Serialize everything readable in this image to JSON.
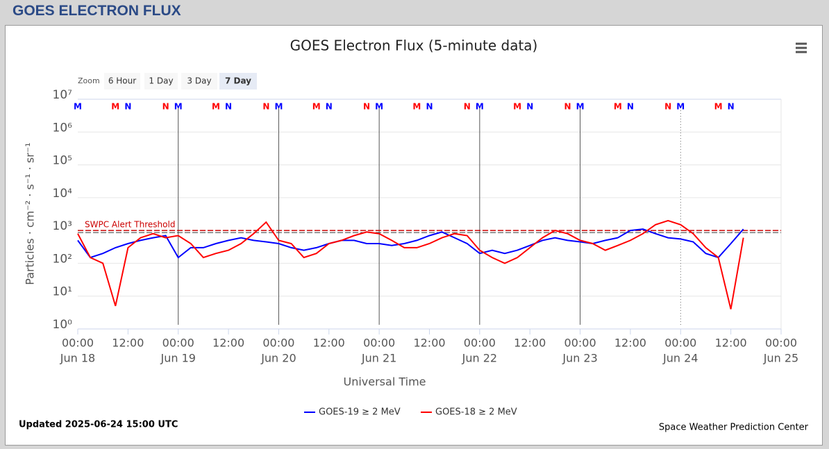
{
  "page_title": "GOES ELECTRON FLUX",
  "zoom": {
    "label": "Zoom",
    "buttons": [
      "6 Hour",
      "1 Day",
      "3 Day",
      "7 Day"
    ],
    "selected": 3
  },
  "updated": "Updated 2025-06-24 15:00 UTC",
  "credit": "Space Weather Prediction Center",
  "chart_data": {
    "type": "line",
    "title": "GOES Electron Flux (5-minute data)",
    "x_label": "Universal Time",
    "y_label": "Particles · cm⁻² · s⁻¹ · sr⁻¹",
    "y_scale": "log",
    "grid": true,
    "xlim": [
      "Jun 18 00:00",
      "Jun 25 00:00"
    ],
    "xticks": [
      {
        "value": "Jun 18 00:00",
        "label": [
          "00:00",
          "Jun 18"
        ]
      },
      {
        "value": "Jun 18 12:00",
        "label": "12:00"
      },
      {
        "value": "Jun 19 00:00",
        "label": [
          "00:00",
          "Jun 19"
        ]
      },
      {
        "value": "Jun 19 12:00",
        "label": "12:00"
      },
      {
        "value": "Jun 20 00:00",
        "label": [
          "00:00",
          "Jun 20"
        ]
      },
      {
        "value": "Jun 20 12:00",
        "label": "12:00"
      },
      {
        "value": "Jun 21 00:00",
        "label": [
          "00:00",
          "Jun 21"
        ]
      },
      {
        "value": "Jun 21 12:00",
        "label": "12:00"
      },
      {
        "value": "Jun 22 00:00",
        "label": [
          "00:00",
          "Jun 22"
        ]
      },
      {
        "value": "Jun 22 12:00",
        "label": "12:00"
      },
      {
        "value": "Jun 23 00:00",
        "label": [
          "00:00",
          "Jun 23"
        ]
      },
      {
        "value": "Jun 23 12:00",
        "label": "12:00"
      },
      {
        "value": "Jun 24 00:00",
        "label": [
          "00:00",
          "Jun 24"
        ]
      },
      {
        "value": "Jun 24 12:00",
        "label": "12:00"
      },
      {
        "value": "Jun 25 00:00",
        "label": [
          "00:00",
          "Jun 25"
        ]
      }
    ],
    "ylim": [
      1,
      10000000
    ],
    "yticks": [
      {
        "value": 1,
        "label": "10⁰"
      },
      {
        "value": 10,
        "label": "10¹"
      },
      {
        "value": 100,
        "label": "10²"
      },
      {
        "value": 1000,
        "label": "10³"
      },
      {
        "value": 10000,
        "label": "10⁴"
      },
      {
        "value": 100000,
        "label": "10⁵"
      },
      {
        "value": 1000000,
        "label": "10⁶"
      },
      {
        "value": 10000000,
        "label": "10⁷"
      }
    ],
    "x": [
      "Jun 18 00:00",
      "Jun 18 03:00",
      "Jun 18 06:00",
      "Jun 18 09:00",
      "Jun 18 12:00",
      "Jun 18 15:00",
      "Jun 18 18:00",
      "Jun 18 21:00",
      "Jun 19 00:00",
      "Jun 19 03:00",
      "Jun 19 06:00",
      "Jun 19 09:00",
      "Jun 19 12:00",
      "Jun 19 15:00",
      "Jun 19 18:00",
      "Jun 19 21:00",
      "Jun 20 00:00",
      "Jun 20 03:00",
      "Jun 20 06:00",
      "Jun 20 09:00",
      "Jun 20 12:00",
      "Jun 20 15:00",
      "Jun 20 18:00",
      "Jun 20 21:00",
      "Jun 21 00:00",
      "Jun 21 03:00",
      "Jun 21 06:00",
      "Jun 21 09:00",
      "Jun 21 12:00",
      "Jun 21 15:00",
      "Jun 21 18:00",
      "Jun 21 21:00",
      "Jun 22 00:00",
      "Jun 22 03:00",
      "Jun 22 06:00",
      "Jun 22 09:00",
      "Jun 22 12:00",
      "Jun 22 15:00",
      "Jun 22 18:00",
      "Jun 22 21:00",
      "Jun 23 00:00",
      "Jun 23 03:00",
      "Jun 23 06:00",
      "Jun 23 09:00",
      "Jun 23 12:00",
      "Jun 23 15:00",
      "Jun 23 18:00",
      "Jun 23 21:00",
      "Jun 24 00:00",
      "Jun 24 03:00",
      "Jun 24 06:00",
      "Jun 24 09:00",
      "Jun 24 12:00",
      "Jun 24 15:00"
    ],
    "series": [
      {
        "name": "GOES-19 ≥ 2 MeV",
        "color": "#0000ff",
        "values": [
          500,
          150,
          200,
          300,
          400,
          500,
          600,
          700,
          150,
          300,
          300,
          400,
          500,
          600,
          500,
          450,
          400,
          300,
          250,
          300,
          400,
          500,
          500,
          400,
          400,
          350,
          400,
          500,
          700,
          900,
          600,
          400,
          200,
          250,
          200,
          250,
          350,
          500,
          600,
          500,
          450,
          400,
          500,
          600,
          1000,
          1100,
          800,
          600,
          550,
          450,
          200,
          150,
          400,
          1100
        ]
      },
      {
        "name": "GOES-18 ≥ 2 MeV",
        "color": "#ff0000",
        "values": [
          800,
          150,
          100,
          5,
          300,
          600,
          800,
          600,
          700,
          400,
          150,
          200,
          250,
          400,
          800,
          1800,
          500,
          400,
          150,
          200,
          400,
          500,
          700,
          900,
          800,
          500,
          300,
          300,
          400,
          600,
          800,
          700,
          250,
          150,
          100,
          150,
          300,
          600,
          1000,
          800,
          500,
          400,
          250,
          350,
          500,
          800,
          1500,
          2000,
          1500,
          800,
          300,
          150,
          4,
          600
        ]
      }
    ],
    "threshold": {
      "value": 1000,
      "label": "SWPC Alert Threshold",
      "color": "#cc0000"
    },
    "markers": [
      {
        "label": "M",
        "color": "#0000ff",
        "x": [
          "Jun 18 00:00",
          "Jun 19 00:00",
          "Jun 20 00:00",
          "Jun 21 00:00",
          "Jun 22 00:00",
          "Jun 23 00:00",
          "Jun 24 00:00"
        ]
      },
      {
        "label": "M",
        "color": "#ff0000",
        "x": [
          "Jun 18 09:00",
          "Jun 19 09:00",
          "Jun 20 09:00",
          "Jun 21 09:00",
          "Jun 22 09:00",
          "Jun 23 09:00",
          "Jun 24 09:00"
        ]
      },
      {
        "label": "N",
        "color": "#0000ff",
        "x": [
          "Jun 18 12:00",
          "Jun 19 12:00",
          "Jun 20 12:00",
          "Jun 21 12:00",
          "Jun 22 12:00",
          "Jun 23 12:00",
          "Jun 24 12:00"
        ]
      },
      {
        "label": "N",
        "color": "#ff0000",
        "x": [
          "Jun 18 21:00",
          "Jun 19 21:00",
          "Jun 20 21:00",
          "Jun 21 21:00",
          "Jun 22 21:00",
          "Jun 23 21:00"
        ]
      }
    ]
  }
}
